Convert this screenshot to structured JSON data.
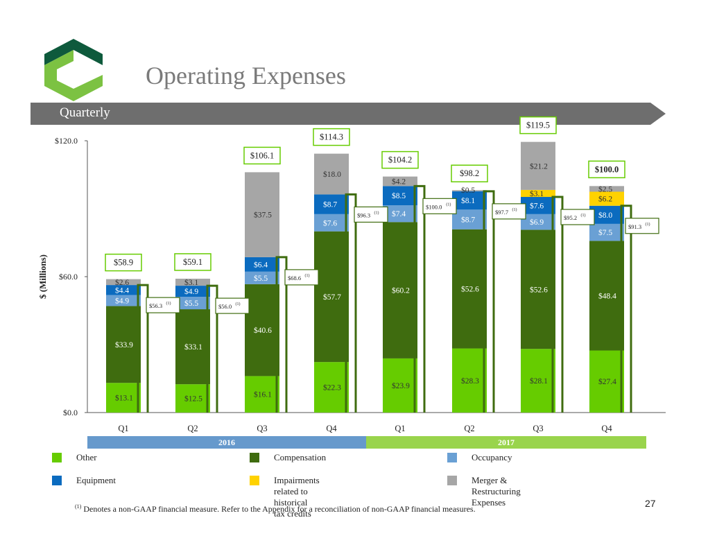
{
  "page": {
    "title": "Operating Expenses",
    "subtitle": "Quarterly",
    "page_number": "27",
    "footnote_marker": "(1)",
    "footnote": "Denotes a non-GAAP financial measure. Refer to the Appendix for a reconciliation of non-GAAP financial measures."
  },
  "colors": {
    "other": "#66cc00",
    "compensation": "#3f6c0f",
    "occupancy": "#6aa0d4",
    "equipment": "#0b6bbf",
    "impairments": "#ffd200",
    "merger": "#a6a6a6",
    "banner": "#6e6e6e",
    "year2016": "#6699cc",
    "year2017": "#99d44c",
    "adjusted_outline": "#3f6c0f",
    "total_box_2016": "#66cc00",
    "logo_dark": "#0e5a3c",
    "logo_light": "#7cc242"
  },
  "chart_data": {
    "type": "bar",
    "stacked": true,
    "categories": [
      "Q1",
      "Q2",
      "Q3",
      "Q4",
      "Q1",
      "Q2",
      "Q3",
      "Q4"
    ],
    "years": [
      {
        "label": "2016",
        "span": [
          0,
          3
        ]
      },
      {
        "label": "2017",
        "span": [
          4,
          7
        ]
      }
    ],
    "ylabel": "$ (Millions)",
    "ylim": [
      0,
      120
    ],
    "yticks": [
      "$0.0",
      "$60.0",
      "$120.0"
    ],
    "ytick_values": [
      0,
      60,
      120
    ],
    "series": [
      {
        "name": "Other",
        "key": "other",
        "values": [
          13.1,
          12.5,
          16.1,
          22.3,
          23.9,
          28.3,
          28.1,
          27.4
        ],
        "labels": [
          "$13.1",
          "$12.5",
          "$16.1",
          "$22.3",
          "$23.9",
          "$28.3",
          "$28.1",
          "$27.4"
        ]
      },
      {
        "name": "Compensation",
        "key": "compensation",
        "values": [
          33.9,
          33.1,
          40.6,
          57.7,
          60.2,
          52.6,
          52.6,
          48.4
        ],
        "labels": [
          "$33.9",
          "$33.1",
          "$40.6",
          "$57.7",
          "$60.2",
          "$52.6",
          "$52.6",
          "$48.4"
        ]
      },
      {
        "name": "Occupancy",
        "key": "occupancy",
        "values": [
          4.9,
          5.5,
          5.5,
          7.6,
          7.4,
          8.7,
          6.9,
          7.5
        ],
        "labels": [
          "$4.9",
          "$5.5",
          "$5.5",
          "$7.6",
          "$7.4",
          "$8.7",
          "$6.9",
          "$7.5"
        ]
      },
      {
        "name": "Equipment",
        "key": "equipment",
        "values": [
          4.4,
          4.9,
          6.4,
          8.7,
          8.5,
          8.1,
          7.6,
          8.0
        ],
        "labels": [
          "$4.4",
          "$4.9",
          "$6.4",
          "$8.7",
          "$8.5",
          "$8.1",
          "$7.6",
          "$8.0"
        ]
      },
      {
        "name": "Impairments related to historical tax credits",
        "key": "impairments",
        "values": [
          0,
          0,
          0,
          0,
          0,
          0,
          3.1,
          6.2
        ],
        "labels": [
          "",
          "",
          "",
          "",
          "",
          "",
          "$3.1",
          "$6.2"
        ]
      },
      {
        "name": "Merger & Restructuring Expenses",
        "key": "merger",
        "values": [
          2.6,
          3.1,
          37.5,
          18.0,
          4.2,
          0.5,
          21.2,
          2.5
        ],
        "labels": [
          "$2.6",
          "$3.1",
          "$37.5",
          "$18.0",
          "$4.2",
          "$0.5",
          "$21.2",
          "$2.5"
        ]
      }
    ],
    "totals": [
      58.9,
      59.1,
      106.1,
      114.3,
      104.2,
      98.2,
      119.5,
      100.0
    ],
    "total_labels": [
      "$58.9",
      "$59.1",
      "$106.1",
      "$114.3",
      "$104.2",
      "$98.2",
      "$119.5",
      "$100.0"
    ],
    "adjusted": [
      56.3,
      56.0,
      68.6,
      96.3,
      100.0,
      97.7,
      95.2,
      91.3
    ],
    "adjusted_labels": [
      "$56.3",
      "$56.0",
      "$68.6",
      "$96.3",
      "$100.0",
      "$97.7",
      "$95.2",
      "$91.3"
    ],
    "adjusted_marker": "(1)",
    "legend": [
      "Other",
      "Compensation",
      "Occupancy",
      "Equipment",
      "Impairments related to historical tax credits",
      "Merger & Restructuring Expenses"
    ],
    "grid": false
  }
}
